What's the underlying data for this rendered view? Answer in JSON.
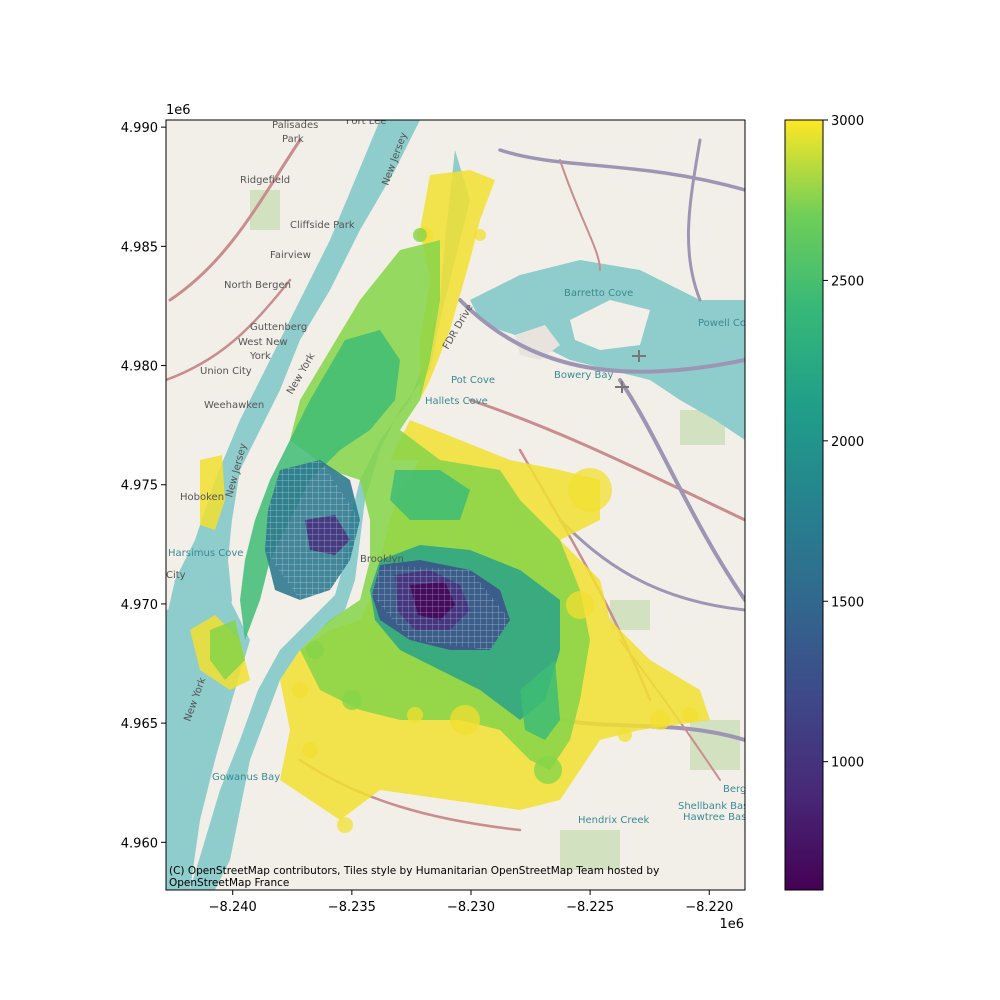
{
  "chart_data": {
    "type": "choropleth-map",
    "basemap": "OpenStreetMap Humanitarian",
    "attribution_line1": "(C) OpenStreetMap contributors, Tiles style by Humanitarian OpenStreetMap Team hosted by",
    "attribution_line2": "OpenStreetMap France",
    "x_ticks": [
      "−8.240",
      "−8.235",
      "−8.230",
      "−8.225",
      "−8.220"
    ],
    "x_tick_values": [
      -8.24,
      -8.235,
      -8.23,
      -8.225,
      -8.22
    ],
    "x_offset": "1e6",
    "xlim": [
      -8.2428,
      -8.2185
    ],
    "y_ticks": [
      "4.960",
      "4.965",
      "4.970",
      "4.975",
      "4.980",
      "4.985",
      "4.990"
    ],
    "y_tick_values": [
      4.96,
      4.965,
      4.97,
      4.975,
      4.98,
      4.985,
      4.99
    ],
    "y_offset": "1e6",
    "ylim": [
      4.958,
      4.9903
    ],
    "colorbar": {
      "colormap": "viridis",
      "range": [
        600,
        3000
      ],
      "ticks": [
        "1000",
        "1500",
        "2000",
        "2500",
        "3000"
      ],
      "tick_values": [
        1000,
        1500,
        2000,
        2500,
        3000
      ]
    },
    "place_labels": [
      "Palisades",
      "Fort Lee",
      "Park",
      "Ridgefield",
      "Cliffside Park",
      "Fairview",
      "North Bergen",
      "Guttenberg",
      "West New",
      "York",
      "Union City",
      "Weehawken",
      "Hoboken",
      "City",
      "New Jersey",
      "New Jersey",
      "New York",
      "New York",
      "FDR Drive",
      "Brooklyn"
    ],
    "water_labels": [
      "Barretto Cove",
      "Powell Cove",
      "Bowery Bay",
      "Pot Cove",
      "Hallets Cove",
      "Harsimus Cove",
      "Gowanus Bay",
      "Hendrix Creek",
      "Shellbank Basin",
      "Hawtree Basin",
      "Berg"
    ]
  }
}
